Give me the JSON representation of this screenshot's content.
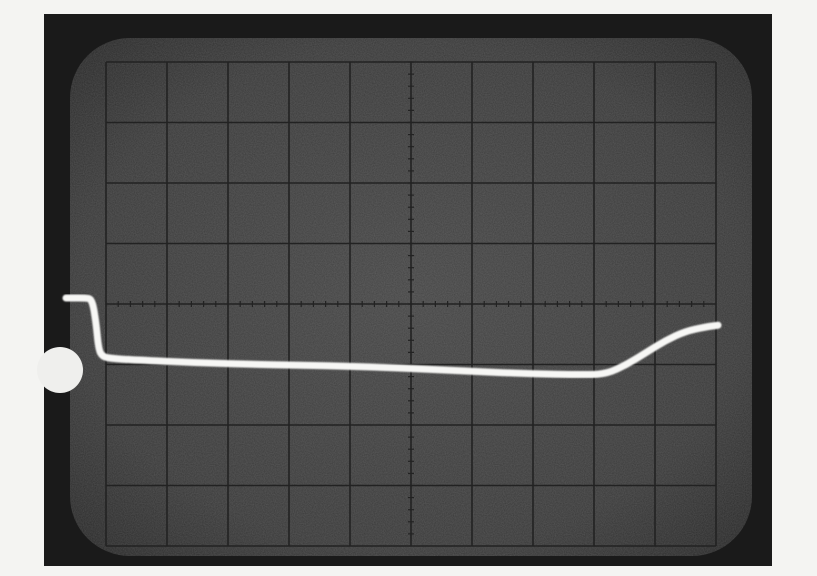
{
  "scene": {
    "colors": {
      "paper": "#f4f4f2",
      "bezel": "#1a1a1a",
      "screen": "#3a3a3a",
      "screen_edge": "#2a2a2a",
      "graticule": "#222222",
      "trace": "#f7f7f5",
      "marker": "#efefed"
    },
    "graticule": {
      "columns": 10,
      "rows": 8,
      "minor_ticks_per_division": 5
    },
    "trace_points": [
      [
        0.0,
        0.0
      ],
      [
        0.1,
        0.0
      ],
      [
        0.3,
        0.0
      ],
      [
        0.4,
        -0.02
      ],
      [
        0.46,
        -0.4
      ],
      [
        0.5,
        -0.85
      ],
      [
        0.56,
        -0.97
      ],
      [
        0.7,
        -1.0
      ],
      [
        1.0,
        -1.02
      ],
      [
        2.0,
        -1.07
      ],
      [
        3.0,
        -1.1
      ],
      [
        4.0,
        -1.12
      ],
      [
        5.0,
        -1.15
      ],
      [
        6.0,
        -1.2
      ],
      [
        7.0,
        -1.25
      ],
      [
        8.0,
        -1.27
      ],
      [
        8.3,
        -1.25
      ],
      [
        8.6,
        -1.1
      ],
      [
        8.9,
        -0.9
      ],
      [
        9.2,
        -0.7
      ],
      [
        9.5,
        -0.55
      ],
      [
        9.8,
        -0.48
      ],
      [
        10.0,
        -0.45
      ]
    ]
  }
}
